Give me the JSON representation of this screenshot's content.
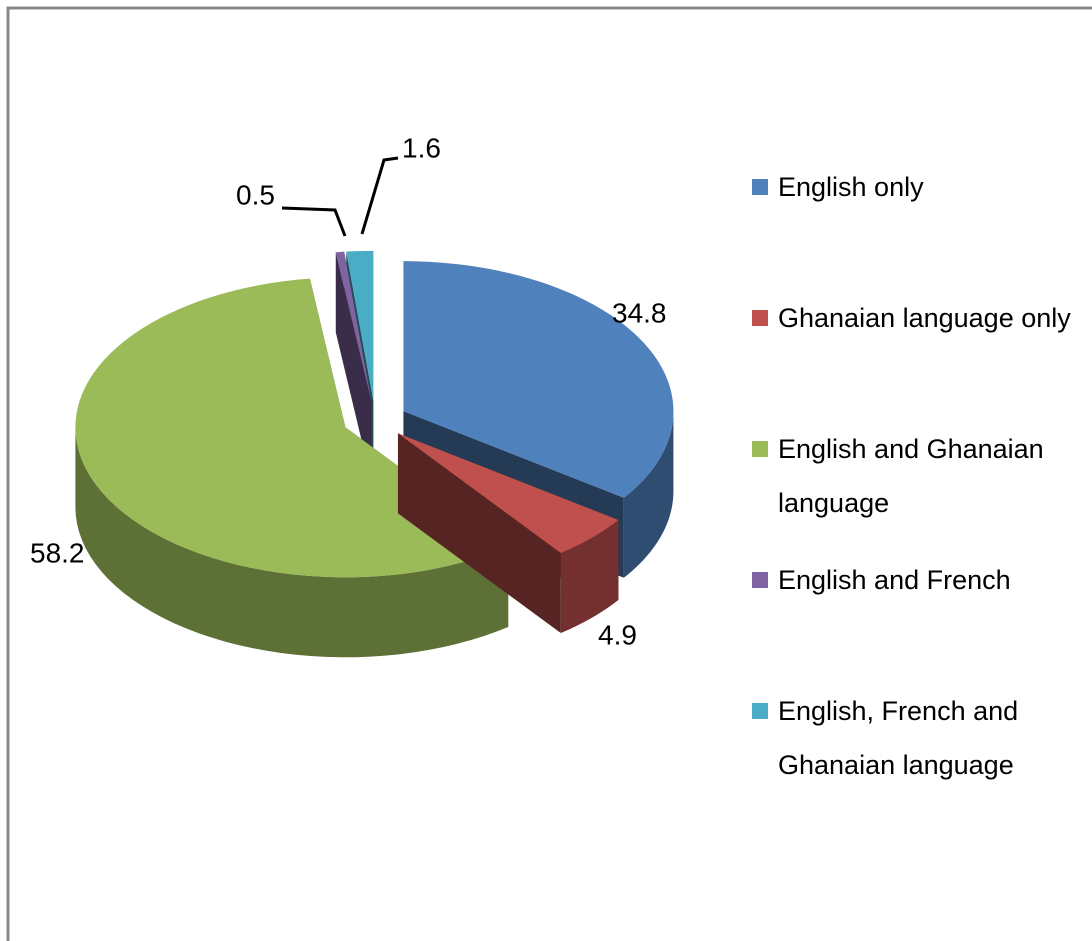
{
  "chart_data": {
    "type": "pie",
    "categories": [
      "English only",
      "Ghanaian language only",
      "English and Ghanaian language",
      "English and French",
      "English, French and Ghanaian language"
    ],
    "values": [
      34.8,
      4.9,
      58.2,
      0.5,
      1.6
    ],
    "colors": [
      "#4f81bd",
      "#c0504d",
      "#9bbb59",
      "#8064a2",
      "#4bacc6"
    ]
  }
}
